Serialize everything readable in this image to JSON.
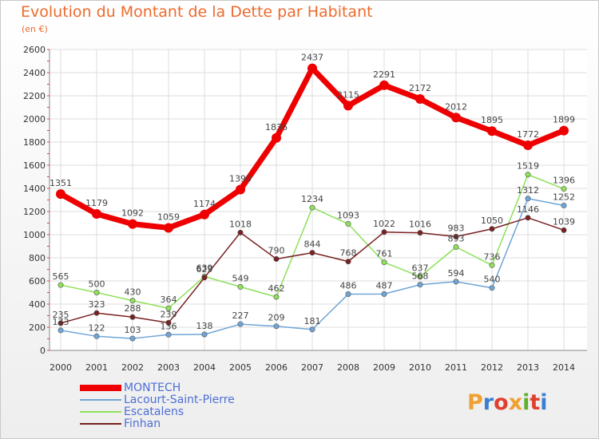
{
  "header": {
    "title": "Evolution du Montant de la Dette par Habitant",
    "unit": "(en €)"
  },
  "logo": {
    "text": "Proxiti",
    "letters": [
      "P",
      "r",
      "o",
      "x",
      "i",
      "t",
      "i"
    ],
    "colors": [
      "#f0a030",
      "#3a7fd0",
      "#e04030",
      "#f0a030",
      "#60b030",
      "#e04030",
      "#3a7fd0"
    ]
  },
  "chart_data": {
    "type": "line",
    "title": "Evolution du Montant de la Dette par Habitant",
    "ylabel": "(en €)",
    "x": [
      "2000",
      "2001",
      "2002",
      "2003",
      "2004",
      "2005",
      "2006",
      "2007",
      "2008",
      "2009",
      "2010",
      "2011",
      "2012",
      "2013",
      "2014"
    ],
    "ylim": [
      0,
      2600
    ],
    "yticks": [
      0,
      200,
      400,
      600,
      800,
      1000,
      1200,
      1400,
      1600,
      1800,
      2000,
      2200,
      2400,
      2600
    ],
    "grid": true,
    "legend_position": "bottom-left",
    "series": [
      {
        "name": "MONTECH",
        "color": "#ee0000",
        "values": [
          1351,
          1179,
          1092,
          1059,
          1174,
          1390,
          1836,
          2437,
          2115,
          2291,
          2172,
          2012,
          1895,
          1772,
          1899
        ],
        "labels": [
          "1351",
          "1179",
          "1092",
          "1059",
          "1174",
          "1390",
          "1836",
          "2437",
          "2115",
          "2291",
          "2172",
          "2012",
          "1895",
          "1772",
          "1899"
        ]
      },
      {
        "name": "Lacourt-Saint-Pierre",
        "color": "#6fa5d6",
        "values": [
          173,
          122,
          103,
          136,
          138,
          227,
          209,
          181,
          486,
          487,
          568,
          594,
          540,
          1312,
          1252
        ],
        "labels": [
          "173",
          "122",
          "103",
          "136",
          "138",
          "227",
          "209",
          "181",
          "486",
          "487",
          "568",
          "594",
          "540",
          "1312",
          "1252"
        ]
      },
      {
        "name": "Escatalens",
        "color": "#8ee05a",
        "values": [
          565,
          500,
          430,
          364,
          639,
          549,
          462,
          1234,
          1093,
          761,
          637,
          893,
          736,
          1519,
          1396
        ],
        "labels": [
          "565",
          "500",
          "430",
          "364",
          "639",
          "549",
          "462",
          "1234",
          "1093",
          "761",
          "637",
          "893",
          "736",
          "1519",
          "1396"
        ]
      },
      {
        "name": "Finhan",
        "color": "#7a2020",
        "values": [
          235,
          323,
          288,
          239,
          629,
          1018,
          790,
          844,
          768,
          1022,
          1016,
          983,
          1050,
          1146,
          1039
        ],
        "labels": [
          "235",
          "323",
          "288",
          "239",
          "629",
          "1018",
          "790",
          "844",
          "768",
          "1022",
          "1016",
          "983",
          "1050",
          "1146",
          "1039"
        ]
      }
    ]
  }
}
